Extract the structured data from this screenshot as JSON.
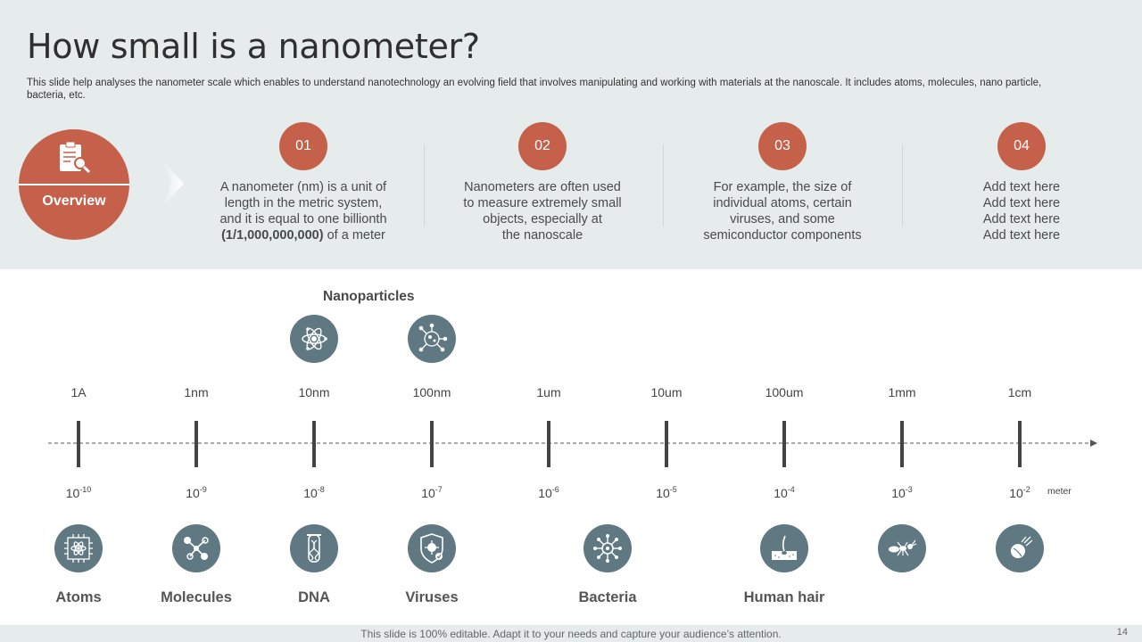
{
  "title": "How small is a nanometer?",
  "subtitle": "This slide help analyses the nanometer scale which enables to understand nanotechnology an evolving field that involves manipulating and working with materials at the nanoscale. It includes atoms, molecules, nano particle, bacteria, etc.",
  "overview": {
    "label": "Overview",
    "icon": "clipboard-search-icon"
  },
  "steps": [
    {
      "num": "01",
      "line1": "A nanometer (nm) is a unit of",
      "line2": "length in the metric system,",
      "line3": "and it is equal to one billionth",
      "bold": "(1/1,000,000,000)",
      "tail": " of a meter"
    },
    {
      "num": "02",
      "line1": "Nanometers are often used",
      "line2": "to measure extremely small",
      "line3": "objects, especially at",
      "line4": "the nanoscale"
    },
    {
      "num": "03",
      "line1": "For example, the size of",
      "line2": "individual atoms, certain",
      "line3": "viruses, and some",
      "line4": "semiconductor components"
    },
    {
      "num": "04",
      "line1": "Add text here",
      "line2": "Add text here",
      "line3": "Add text here",
      "line4": "Add text here"
    }
  ],
  "nanoparticles_label": "Nanoparticles",
  "scale": {
    "top_labels": [
      "1A",
      "1nm",
      "10nm",
      "100nm",
      "1um",
      "10um",
      "100um",
      "1mm",
      "1cm"
    ],
    "bottom_base": [
      "10",
      "10",
      "10",
      "10",
      "10",
      "10",
      "10",
      "10",
      "10"
    ],
    "bottom_exp": [
      "-10",
      "-9",
      "-8",
      "-7",
      "-6",
      "-5",
      "-4",
      "-3",
      "-2"
    ],
    "unit": "meter"
  },
  "objects": [
    {
      "label": "Atoms",
      "icon": "atom-grid-icon"
    },
    {
      "label": "Molecules",
      "icon": "molecule-icon"
    },
    {
      "label": "DNA",
      "icon": "dna-vial-icon"
    },
    {
      "label": "Viruses",
      "icon": "virus-shield-icon"
    },
    {
      "label": "Bacteria",
      "icon": "bacteria-icon"
    },
    {
      "label": "Human hair",
      "icon": "hair-follicle-icon"
    }
  ],
  "extra_icons": [
    "ant-icon",
    "grain-of-sand-icon",
    "atom-icon",
    "nanoparticle-icon"
  ],
  "footer": {
    "text": "This slide is 100% editable. Adapt it to your needs and capture your audience’s attention.",
    "page": "14"
  },
  "colors": {
    "accent": "#c5614b",
    "icon_bg": "#5f7882",
    "band": "#e5eceb"
  }
}
